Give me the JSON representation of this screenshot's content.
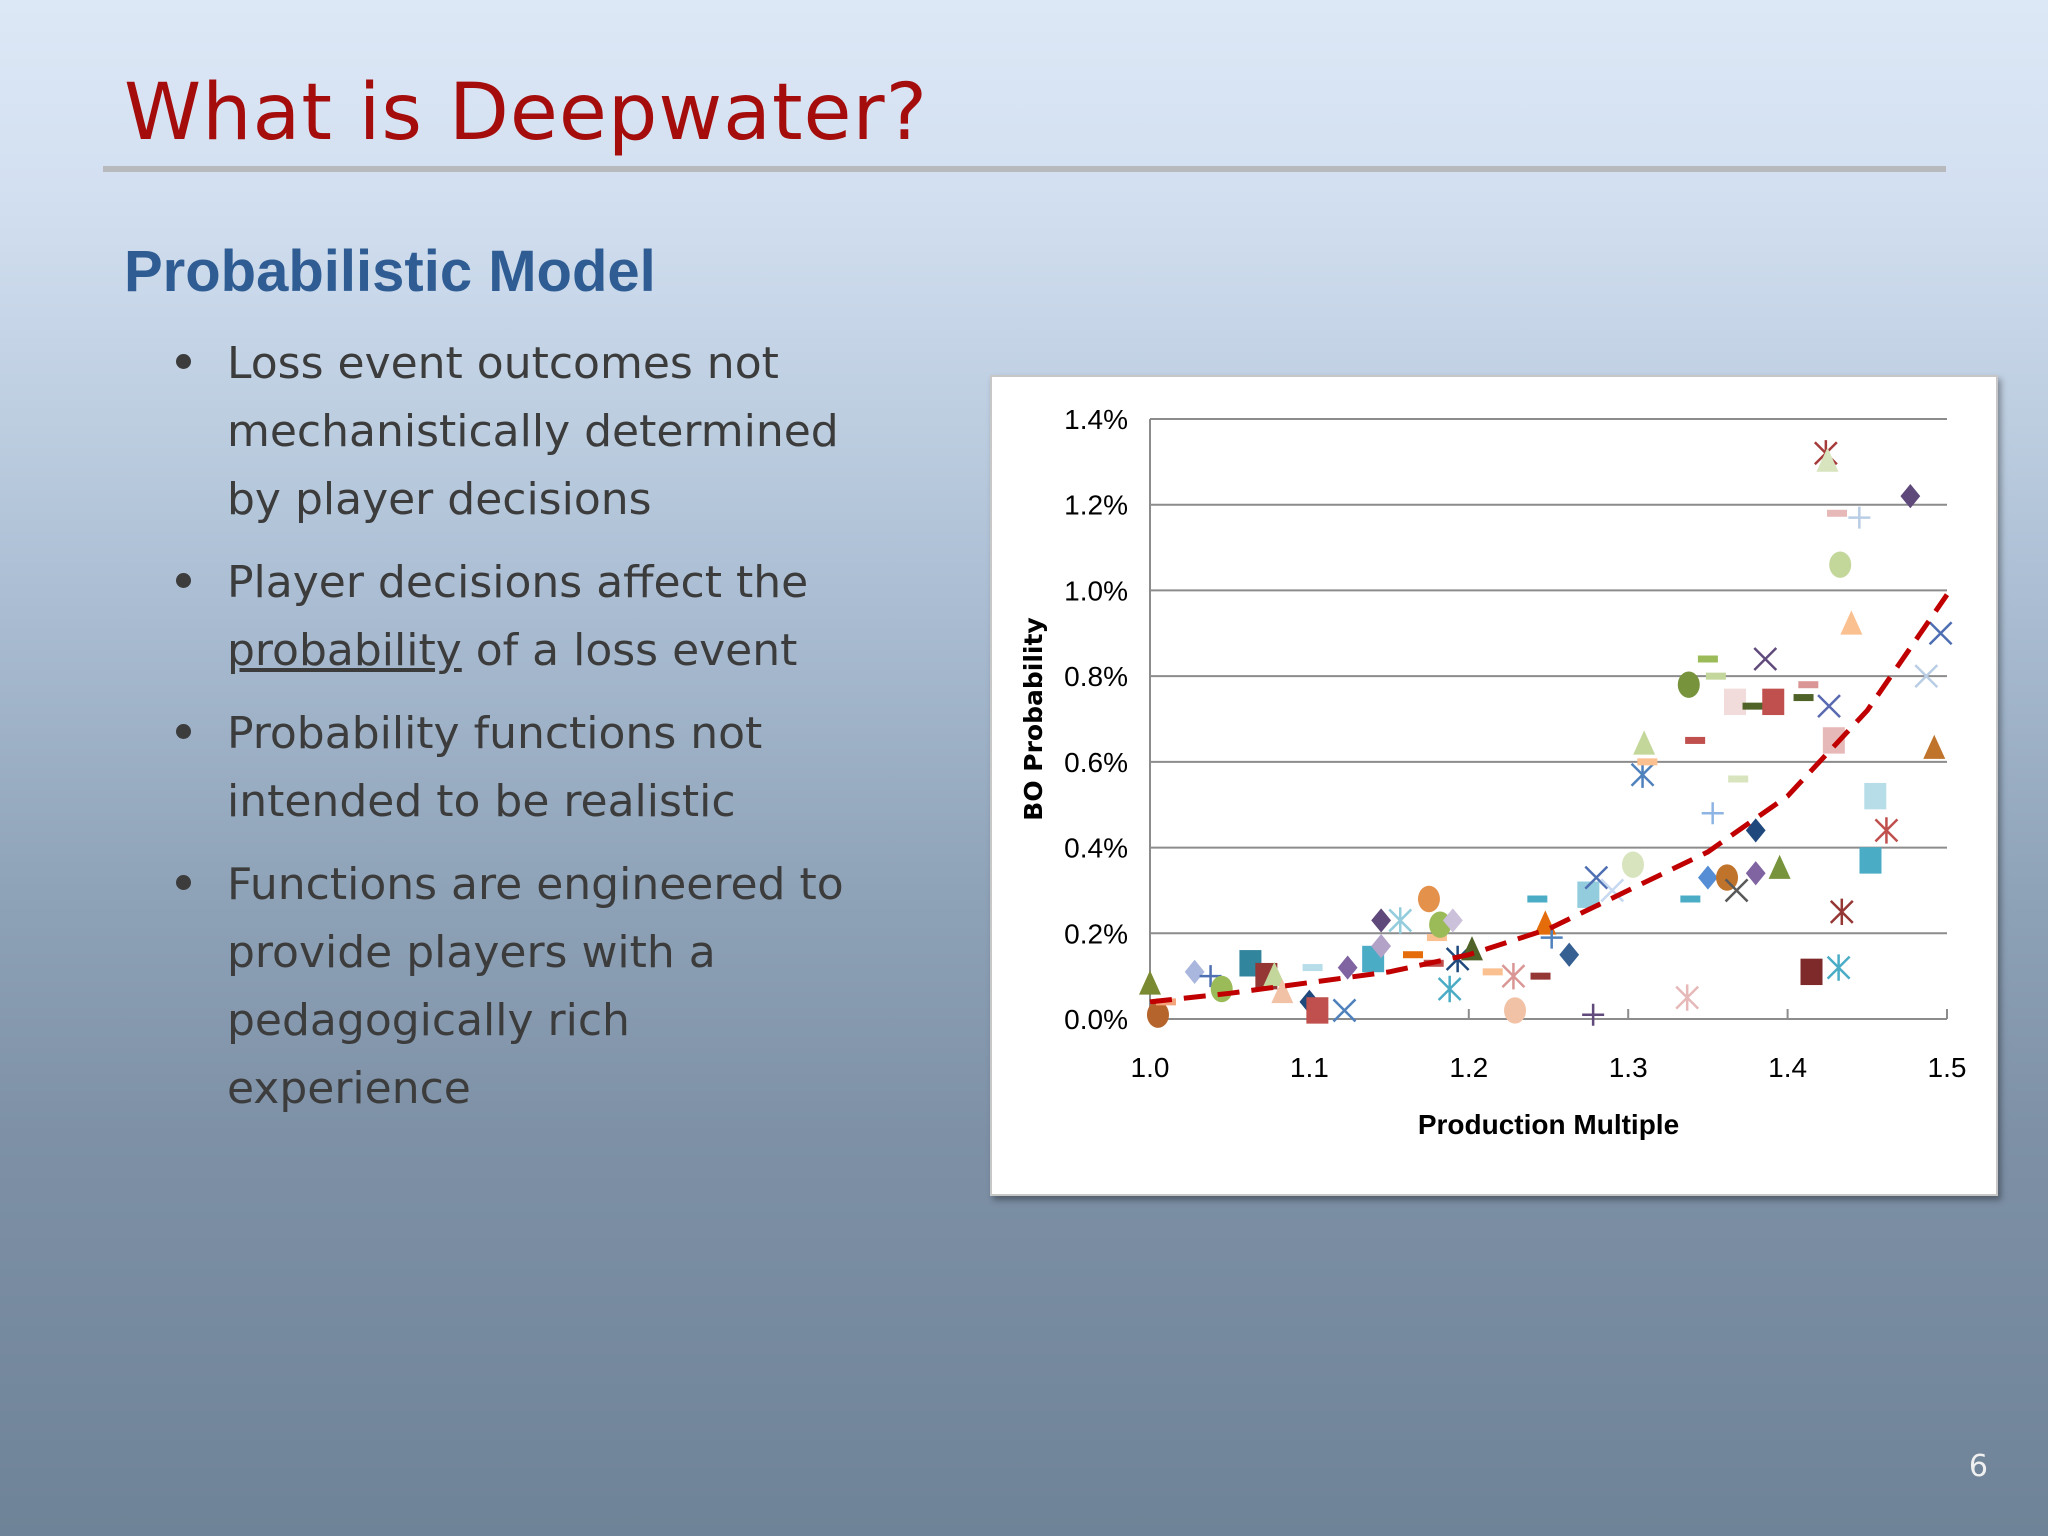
{
  "slide": {
    "title": "What is Deepwater?",
    "subtitle": "Probabilistic Model",
    "page_number": "6",
    "title_color": "#a50d0d",
    "subtitle_color": "#2f5d93"
  },
  "bullets": [
    {
      "before": "Loss event outcomes not mechanistically determined by player decisions",
      "underlined": "",
      "after": ""
    },
    {
      "before": "Player decisions affect the ",
      "underlined": "probability",
      "after": " of a loss event"
    },
    {
      "before": "Probability functions not intended to be realistic",
      "underlined": "",
      "after": ""
    },
    {
      "before": "Functions are engineered to provide players with a pedagogically rich experience",
      "underlined": "",
      "after": ""
    }
  ],
  "chart_data": {
    "type": "scatter",
    "xlabel": "Production Multiple",
    "ylabel": "BO Probability",
    "xlim": [
      1.0,
      1.5
    ],
    "ylim": [
      0.0,
      1.4
    ],
    "x_ticks": [
      "1.0",
      "1.1",
      "1.2",
      "1.3",
      "1.4",
      "1.5"
    ],
    "y_ticks": [
      "0.0%",
      "0.2%",
      "0.4%",
      "0.6%",
      "0.8%",
      "1.0%",
      "1.2%",
      "1.4%"
    ],
    "grid": "horizontal",
    "legend": "none",
    "points": [
      {
        "x": 1.0,
        "y": 0.08,
        "m": "triangle",
        "c": "#7a8a32"
      },
      {
        "x": 1.005,
        "y": 0.01,
        "m": "circle",
        "c": "#b5652b"
      },
      {
        "x": 1.01,
        "y": 0.04,
        "m": "dash",
        "c": "#f4a37a"
      },
      {
        "x": 1.028,
        "y": 0.11,
        "m": "diamond",
        "c": "#a9b6dd"
      },
      {
        "x": 1.038,
        "y": 0.1,
        "m": "plus",
        "c": "#4f6fb3"
      },
      {
        "x": 1.045,
        "y": 0.07,
        "m": "circle",
        "c": "#9bbb59"
      },
      {
        "x": 1.063,
        "y": 0.13,
        "m": "square",
        "c": "#31859c"
      },
      {
        "x": 1.073,
        "y": 0.1,
        "m": "square",
        "c": "#953735"
      },
      {
        "x": 1.078,
        "y": 0.1,
        "m": "triangle",
        "c": "#c3d69b"
      },
      {
        "x": 1.083,
        "y": 0.06,
        "m": "triangle",
        "c": "#f2c2a6"
      },
      {
        "x": 1.1,
        "y": 0.04,
        "m": "diamond",
        "c": "#1f497d"
      },
      {
        "x": 1.102,
        "y": 0.12,
        "m": "dash",
        "c": "#b7dde8"
      },
      {
        "x": 1.105,
        "y": 0.02,
        "m": "square",
        "c": "#c0504d"
      },
      {
        "x": 1.122,
        "y": 0.02,
        "m": "cross",
        "c": "#4f81bd"
      },
      {
        "x": 1.124,
        "y": 0.12,
        "m": "diamond",
        "c": "#8064a2"
      },
      {
        "x": 1.14,
        "y": 0.14,
        "m": "square",
        "c": "#4bacc6"
      },
      {
        "x": 1.145,
        "y": 0.23,
        "m": "diamond",
        "c": "#5f497a"
      },
      {
        "x": 1.145,
        "y": 0.17,
        "m": "diamond",
        "c": "#b3a2c7"
      },
      {
        "x": 1.157,
        "y": 0.23,
        "m": "asterisk",
        "c": "#93cddd"
      },
      {
        "x": 1.165,
        "y": 0.15,
        "m": "dash",
        "c": "#e46c0a"
      },
      {
        "x": 1.175,
        "y": 0.28,
        "m": "circle",
        "c": "#e3914b"
      },
      {
        "x": 1.178,
        "y": 0.13,
        "m": "dash",
        "c": "#c0504d"
      },
      {
        "x": 1.18,
        "y": 0.19,
        "m": "dash",
        "c": "#fac090"
      },
      {
        "x": 1.182,
        "y": 0.22,
        "m": "circle",
        "c": "#9bbb59"
      },
      {
        "x": 1.188,
        "y": 0.07,
        "m": "asterisk",
        "c": "#4bacc6"
      },
      {
        "x": 1.19,
        "y": 0.23,
        "m": "diamond",
        "c": "#ccc1da"
      },
      {
        "x": 1.193,
        "y": 0.14,
        "m": "asterisk",
        "c": "#1f497d"
      },
      {
        "x": 1.202,
        "y": 0.16,
        "m": "triangle",
        "c": "#4f6228"
      },
      {
        "x": 1.215,
        "y": 0.11,
        "m": "dash",
        "c": "#fac090"
      },
      {
        "x": 1.228,
        "y": 0.1,
        "m": "asterisk",
        "c": "#d99694"
      },
      {
        "x": 1.229,
        "y": 0.02,
        "m": "circle",
        "c": "#f2c2a6"
      },
      {
        "x": 1.243,
        "y": 0.28,
        "m": "dash",
        "c": "#4bacc6"
      },
      {
        "x": 1.245,
        "y": 0.1,
        "m": "dash",
        "c": "#953735"
      },
      {
        "x": 1.248,
        "y": 0.22,
        "m": "triangle",
        "c": "#e46c0a"
      },
      {
        "x": 1.252,
        "y": 0.19,
        "m": "plus",
        "c": "#4f81bd"
      },
      {
        "x": 1.263,
        "y": 0.15,
        "m": "diamond",
        "c": "#376092"
      },
      {
        "x": 1.275,
        "y": 0.29,
        "m": "square",
        "c": "#93cddd"
      },
      {
        "x": 1.278,
        "y": 0.01,
        "m": "plus",
        "c": "#604a7b"
      },
      {
        "x": 1.28,
        "y": 0.33,
        "m": "cross",
        "c": "#4f6fb3"
      },
      {
        "x": 1.29,
        "y": 0.3,
        "m": "cross",
        "c": "#c6d9f1"
      },
      {
        "x": 1.303,
        "y": 0.36,
        "m": "circle",
        "c": "#d7e4bd"
      },
      {
        "x": 1.309,
        "y": 0.57,
        "m": "asterisk",
        "c": "#4f81bd"
      },
      {
        "x": 1.31,
        "y": 0.64,
        "m": "triangle",
        "c": "#c4d79b"
      },
      {
        "x": 1.312,
        "y": 0.6,
        "m": "dash",
        "c": "#fac090"
      },
      {
        "x": 1.337,
        "y": 0.05,
        "m": "asterisk",
        "c": "#e6b9b8"
      },
      {
        "x": 1.338,
        "y": 0.78,
        "m": "circle",
        "c": "#77933c"
      },
      {
        "x": 1.339,
        "y": 0.28,
        "m": "dash",
        "c": "#4bacc6"
      },
      {
        "x": 1.342,
        "y": 0.65,
        "m": "dash",
        "c": "#c0504d"
      },
      {
        "x": 1.35,
        "y": 0.84,
        "m": "dash",
        "c": "#9bbb59"
      },
      {
        "x": 1.35,
        "y": 0.33,
        "m": "diamond",
        "c": "#558ed5"
      },
      {
        "x": 1.353,
        "y": 0.48,
        "m": "plus",
        "c": "#8eb4e3"
      },
      {
        "x": 1.355,
        "y": 0.8,
        "m": "dash",
        "c": "#c3d69b"
      },
      {
        "x": 1.362,
        "y": 0.33,
        "m": "circle",
        "c": "#c0732a"
      },
      {
        "x": 1.367,
        "y": 0.74,
        "m": "square",
        "c": "#f2dcdb"
      },
      {
        "x": 1.368,
        "y": 0.3,
        "m": "cross",
        "c": "#595959"
      },
      {
        "x": 1.369,
        "y": 0.56,
        "m": "dash",
        "c": "#d7e4bd"
      },
      {
        "x": 1.378,
        "y": 0.73,
        "m": "dash",
        "c": "#4f6228"
      },
      {
        "x": 1.38,
        "y": 0.44,
        "m": "diamond",
        "c": "#1f497d"
      },
      {
        "x": 1.38,
        "y": 0.34,
        "m": "diamond",
        "c": "#8064a2"
      },
      {
        "x": 1.386,
        "y": 0.84,
        "m": "cross",
        "c": "#604a7b"
      },
      {
        "x": 1.391,
        "y": 0.74,
        "m": "square",
        "c": "#c0504d"
      },
      {
        "x": 1.395,
        "y": 0.35,
        "m": "triangle",
        "c": "#77933c"
      },
      {
        "x": 1.41,
        "y": 0.75,
        "m": "dash",
        "c": "#4f6228"
      },
      {
        "x": 1.413,
        "y": 0.78,
        "m": "dash",
        "c": "#da9694"
      },
      {
        "x": 1.415,
        "y": 0.11,
        "m": "square",
        "c": "#7f2a2a"
      },
      {
        "x": 1.424,
        "y": 1.32,
        "m": "asterisk",
        "c": "#a53a3a"
      },
      {
        "x": 1.425,
        "y": 1.3,
        "m": "triangle",
        "c": "#d7e4bd"
      },
      {
        "x": 1.426,
        "y": 0.73,
        "m": "cross",
        "c": "#5a6ab0"
      },
      {
        "x": 1.429,
        "y": 0.65,
        "m": "square",
        "c": "#e6b9b8"
      },
      {
        "x": 1.431,
        "y": 1.18,
        "m": "dash",
        "c": "#e6b9b8"
      },
      {
        "x": 1.432,
        "y": 0.12,
        "m": "asterisk",
        "c": "#4bacc6"
      },
      {
        "x": 1.433,
        "y": 1.06,
        "m": "circle",
        "c": "#c4d79b"
      },
      {
        "x": 1.434,
        "y": 0.25,
        "m": "asterisk",
        "c": "#953735"
      },
      {
        "x": 1.44,
        "y": 0.92,
        "m": "triangle",
        "c": "#fac090"
      },
      {
        "x": 1.445,
        "y": 1.17,
        "m": "plus",
        "c": "#b9cde5"
      },
      {
        "x": 1.452,
        "y": 0.37,
        "m": "square",
        "c": "#4bacc6"
      },
      {
        "x": 1.455,
        "y": 0.52,
        "m": "square",
        "c": "#b7dde8"
      },
      {
        "x": 1.462,
        "y": 0.44,
        "m": "asterisk",
        "c": "#c0504d"
      },
      {
        "x": 1.477,
        "y": 1.22,
        "m": "diamond",
        "c": "#5f497a"
      },
      {
        "x": 1.487,
        "y": 0.8,
        "m": "cross",
        "c": "#b9cde5"
      },
      {
        "x": 1.492,
        "y": 0.63,
        "m": "triangle",
        "c": "#c0732a"
      },
      {
        "x": 1.496,
        "y": 0.9,
        "m": "cross",
        "c": "#4f6fb3"
      }
    ],
    "trendline": {
      "style": "dashed",
      "color": "#c00000",
      "x": [
        1.0,
        1.05,
        1.1,
        1.15,
        1.2,
        1.25,
        1.3,
        1.35,
        1.4,
        1.45,
        1.5
      ],
      "y": [
        0.04,
        0.06,
        0.085,
        0.11,
        0.15,
        0.21,
        0.3,
        0.39,
        0.52,
        0.72,
        0.99
      ]
    }
  }
}
